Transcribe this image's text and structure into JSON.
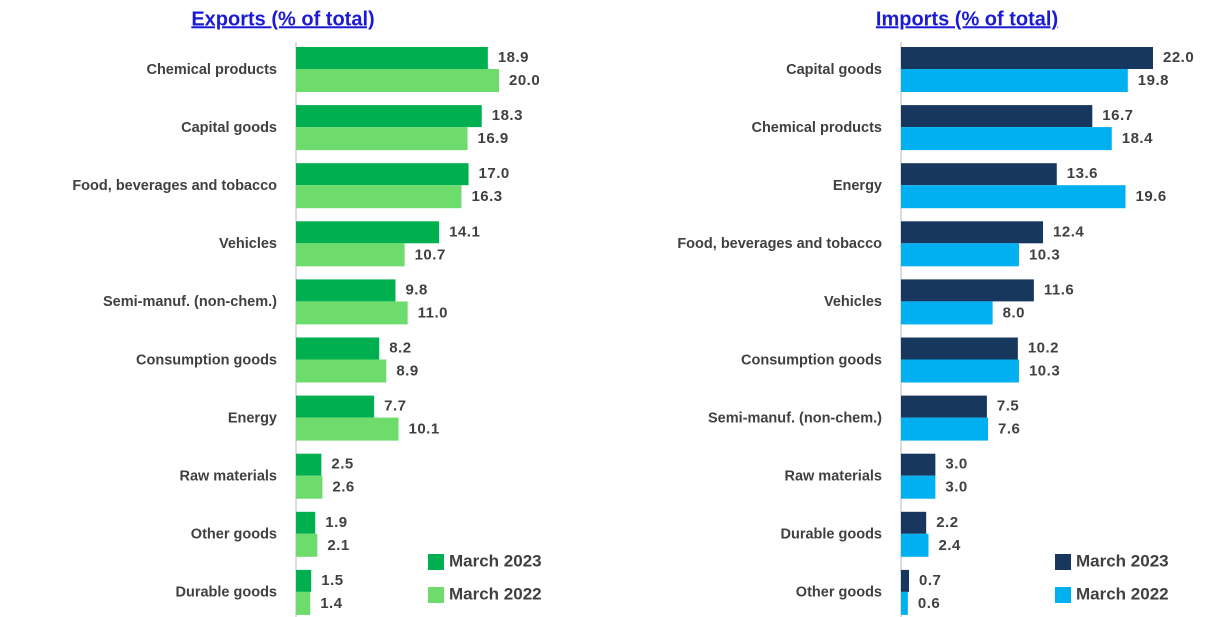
{
  "chart_data": [
    {
      "type": "bar",
      "orientation": "horizontal",
      "title": "Exports (% of total)",
      "categories": [
        "Chemical products",
        "Capital goods",
        "Food, beverages and tobacco",
        "Vehicles",
        "Semi-manuf. (non-chem.)",
        "Consumption goods",
        "Energy",
        "Raw materials",
        "Other goods",
        "Durable goods"
      ],
      "series": [
        {
          "name": "March 2023",
          "color": "#00b050",
          "values": [
            18.9,
            18.3,
            17,
            14.1,
            9.8,
            8.2,
            7.7,
            2.5,
            1.9,
            1.5
          ],
          "value_labels": [
            "18.9",
            "18.3",
            "17.0",
            "14.1",
            "9.8",
            "8.2",
            "7.7",
            "2.5",
            "1.9",
            "1.5"
          ]
        },
        {
          "name": "March 2022",
          "color": "#6ddc6d",
          "values": [
            20,
            16.9,
            16.3,
            10.7,
            11,
            8.9,
            10.1,
            2.6,
            2.1,
            1.4
          ],
          "value_labels": [
            "20.0",
            "16.9",
            "16.3",
            "10.7",
            "11.0",
            "8.9",
            "10.1",
            "2.6",
            "2.1",
            "1.4"
          ]
        }
      ]
    },
    {
      "type": "bar",
      "orientation": "horizontal",
      "title": "Imports (% of total)",
      "categories": [
        "Capital goods",
        "Chemical products",
        "Energy",
        "Food, beverages and tobacco",
        "Vehicles",
        "Consumption goods",
        "Semi-manuf. (non-chem.)",
        "Raw materials",
        "Durable goods",
        "Other goods"
      ],
      "series": [
        {
          "name": "March 2023",
          "color": "#17375e",
          "values": [
            22,
            16.7,
            13.6,
            12.4,
            11.6,
            10.2,
            7.5,
            3,
            2.2,
            0.7
          ],
          "value_labels": [
            "22.0",
            "16.7",
            "13.6",
            "12.4",
            "11.6",
            "10.2",
            "7.5",
            "3.0",
            "2.2",
            "0.7"
          ]
        },
        {
          "name": "March 2022",
          "color": "#00b0f0",
          "values": [
            19.8,
            18.4,
            19.6,
            10.3,
            8,
            10.3,
            7.6,
            3,
            2.4,
            0.6
          ],
          "value_labels": [
            "19.8",
            "18.4",
            "19.6",
            "10.3",
            "8.0",
            "10.3",
            "7.6",
            "3.0",
            "2.4",
            "0.6"
          ]
        }
      ]
    }
  ]
}
